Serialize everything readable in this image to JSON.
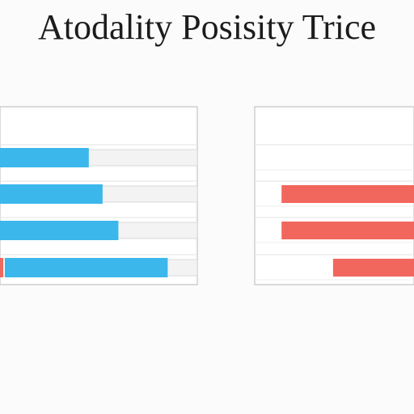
{
  "header": {
    "title": "Atodality Posisity Trice",
    "subtitle_line1": "",
    "subtitle_line2": ""
  },
  "colors": {
    "left_bars": "#3bb7ec",
    "left_start_accent": "#ee6a5f",
    "right_bars": "#f2675d"
  },
  "chart_data": [
    {
      "type": "bar",
      "orientation": "horizontal",
      "title": "",
      "categories": [
        "",
        "",
        "",
        ""
      ],
      "values": [
        0.45,
        0.52,
        0.6,
        0.85
      ],
      "xlim": [
        0,
        1
      ],
      "xtick_labels": [
        "",
        ""
      ],
      "grid": true
    },
    {
      "type": "bar",
      "orientation": "horizontal",
      "title": "",
      "categories": [
        "",
        "",
        "",
        ""
      ],
      "values": [
        0,
        0.9,
        0.9,
        0.55
      ],
      "bars_start_right": true,
      "xlim": [
        0,
        1
      ],
      "ytick_labels": [
        "",
        "",
        "",
        "",
        ""
      ],
      "xtick_labels": [
        "",
        ""
      ],
      "grid": true
    }
  ]
}
